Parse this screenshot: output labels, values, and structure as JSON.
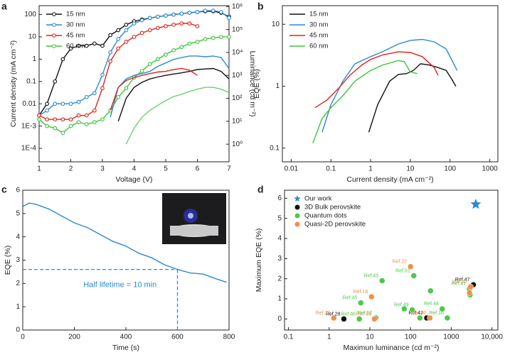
{
  "chart_data": [
    {
      "type": "line",
      "panel": "a",
      "xlabel": "Voltage (V)",
      "ylabel": "Current density (mA cm⁻²)",
      "y2label": "Luminance (cd m⁻²)",
      "log_y": true,
      "log_y2": true,
      "legend": "upper left",
      "xlim": [
        1,
        7
      ],
      "xticks": [
        1,
        2,
        3,
        4,
        5,
        6,
        7
      ],
      "ylim": [
        2.5e-05,
        250
      ],
      "yticks": [
        {
          "value": 0.0001,
          "label": "1E-4"
        },
        {
          "value": 0.001,
          "label": "1E-3"
        },
        0.01,
        0.1,
        1,
        10,
        100
      ],
      "y2lim": [
        0.17,
        1100000
      ],
      "y2ticks": [
        {
          "value": 1,
          "label": "10⁰"
        },
        {
          "value": 10,
          "label": "10¹"
        },
        {
          "value": 100,
          "label": "10²"
        },
        {
          "value": 1000,
          "label": "10³"
        },
        {
          "value": 10000,
          "label": "10⁴"
        },
        {
          "value": 100000,
          "label": "10⁵"
        },
        {
          "value": 1000000,
          "label": "10⁶"
        }
      ],
      "x": [
        1,
        1.25,
        1.5,
        1.75,
        2,
        2.25,
        2.5,
        2.75,
        3,
        3.25,
        3.5,
        3.75,
        4,
        4.25,
        4.5,
        4.75,
        5,
        5.25,
        5.5,
        5.75,
        6,
        6.25,
        6.5,
        6.75,
        7
      ],
      "series": [
        {
          "name": "15 nm",
          "color": "#111111",
          "markers": true,
          "values": [
            0.003,
            0.01,
            0.1,
            1,
            3,
            4,
            4,
            5,
            4,
            12,
            20,
            35,
            50,
            60,
            70,
            80,
            90,
            100,
            110,
            120,
            130,
            140,
            140,
            120,
            80
          ]
        },
        {
          "name": "30 nm",
          "color": "#2a8ad4",
          "markers": true,
          "values": [
            0.003,
            0.005,
            0.01,
            0.01,
            0.01,
            0.012,
            0.02,
            0.03,
            0.2,
            2,
            8,
            20,
            40,
            55,
            70,
            80,
            90,
            100,
            110,
            120,
            130,
            150,
            150,
            130,
            70
          ]
        },
        {
          "name": "45 nm",
          "color": "#e3221c",
          "markers": true,
          "values": [
            0.003,
            0.002,
            0.002,
            0.002,
            0.002,
            0.003,
            0.003,
            0.005,
            0.05,
            0.8,
            3,
            6,
            10,
            15,
            20,
            25,
            30,
            35,
            40,
            40,
            30,
            null,
            null,
            null,
            null
          ]
        },
        {
          "name": "60 nm",
          "color": "#3cc43c",
          "markers": true,
          "values": [
            0.002,
            0.001,
            0.0008,
            0.0005,
            0.001,
            0.0015,
            0.0012,
            0.0015,
            0.002,
            0.005,
            0.02,
            0.05,
            0.15,
            0.3,
            0.6,
            1,
            1.6,
            2.5,
            3.5,
            5,
            6,
            8,
            9,
            10,
            10
          ]
        },
        {
          "color": "#111111",
          "axis": "y2",
          "values": [
            null,
            null,
            null,
            null,
            null,
            null,
            null,
            null,
            null,
            null,
            10,
            100,
            300,
            500,
            700,
            850,
            1000,
            1150,
            1300,
            1500,
            1800,
            1900,
            2000,
            1500,
            700
          ]
        },
        {
          "color": "#2a8ad4",
          "axis": "y2",
          "values": [
            null,
            null,
            null,
            null,
            null,
            null,
            null,
            null,
            null,
            15,
            300,
            700,
            1000,
            1200,
            1500,
            2500,
            3500,
            5000,
            6000,
            7000,
            7000,
            6500,
            7000,
            6000,
            2000
          ]
        },
        {
          "color": "#e3221c",
          "axis": "y2",
          "values": [
            null,
            null,
            null,
            null,
            null,
            null,
            null,
            null,
            null,
            30,
            300,
            600,
            800,
            1000,
            1200,
            1400,
            1500,
            1800,
            2000,
            1700,
            1000,
            null,
            null,
            null,
            null
          ]
        },
        {
          "color": "#66d466",
          "axis": "y2",
          "values": [
            null,
            null,
            null,
            null,
            null,
            null,
            null,
            null,
            null,
            null,
            null,
            1,
            5,
            15,
            30,
            50,
            80,
            120,
            150,
            200,
            250,
            300,
            300,
            250,
            180
          ]
        }
      ]
    },
    {
      "type": "line",
      "panel": "b",
      "xlabel": "Current density (mA cm⁻²)",
      "ylabel": "EQE (%)",
      "log_x": true,
      "log_y": true,
      "legend": "upper left",
      "xlim": [
        0.006,
        1600
      ],
      "xticks": [
        0.01,
        0.1,
        1,
        10,
        100,
        1000
      ],
      "ylim": [
        0.06,
        20
      ],
      "yticks": [
        0.1,
        1,
        10
      ],
      "series": [
        {
          "name": "15 nm",
          "color": "#111111",
          "x": [
            0.9,
            1.5,
            3,
            5,
            8,
            12,
            18,
            30,
            50,
            80,
            110,
            140
          ],
          "values": [
            0.18,
            0.5,
            1.2,
            1.55,
            1.6,
            1.8,
            2.3,
            2.2,
            2,
            1.8,
            1.3,
            1
          ]
        },
        {
          "name": "30 nm",
          "color": "#2a8ad4",
          "x": [
            0.06,
            0.1,
            0.2,
            0.4,
            1,
            2,
            5,
            10,
            20,
            40,
            80,
            150
          ],
          "values": [
            0.18,
            0.5,
            1.2,
            2.3,
            3,
            3.6,
            4.8,
            5.5,
            5.7,
            5.2,
            4,
            1.8
          ]
        },
        {
          "name": "45 nm",
          "color": "#e3221c",
          "x": [
            0.04,
            0.08,
            0.15,
            0.3,
            0.6,
            1,
            2,
            5,
            10,
            20,
            40,
            50
          ],
          "values": [
            0.45,
            0.6,
            0.9,
            1.5,
            2.2,
            2.7,
            3.2,
            3.6,
            3.5,
            3,
            2,
            1.5
          ]
        },
        {
          "name": "60 nm",
          "color": "#3cc43c",
          "x": [
            0.035,
            0.06,
            0.1,
            0.2,
            0.4,
            1,
            2,
            5,
            7,
            10,
            15
          ],
          "values": [
            0.12,
            0.3,
            0.45,
            0.7,
            1.2,
            1.8,
            2.2,
            2.6,
            2.5,
            1.7,
            1.6
          ]
        }
      ]
    },
    {
      "type": "line",
      "panel": "c",
      "xlabel": "Time (s)",
      "ylabel": "EQE (%)",
      "xlim": [
        0,
        800
      ],
      "xticks": [
        0,
        200,
        400,
        600,
        800
      ],
      "ylim": [
        0,
        6
      ],
      "yticks": [
        0,
        1,
        2,
        3,
        4,
        5,
        6
      ],
      "annotation": "Half lifetime = 10 min",
      "reference": {
        "x": 600,
        "y": 2.6
      },
      "series": [
        {
          "color": "#2a8ad4",
          "x": [
            0,
            25,
            50,
            100,
            150,
            200,
            250,
            300,
            350,
            400,
            450,
            500,
            550,
            600,
            650,
            700,
            750,
            790
          ],
          "values": [
            5.3,
            5.45,
            5.4,
            5.2,
            4.9,
            4.6,
            4.4,
            4.1,
            3.8,
            3.6,
            3.3,
            3.1,
            2.8,
            2.6,
            2.45,
            2.4,
            2.2,
            2.05
          ]
        }
      ]
    },
    {
      "type": "scatter",
      "panel": "d",
      "xlabel": "Maximun luminance (cd m⁻²)",
      "ylabel": "Maximum EQE (%)",
      "log_x": true,
      "legend": "upper left",
      "xlim": [
        0.08,
        14000
      ],
      "xticks": [
        0.1,
        1,
        10,
        100,
        1000,
        {
          "value": 10000,
          "label": "10,000"
        }
      ],
      "ylim": [
        -0.55,
        6.4
      ],
      "yticks": [
        0,
        1,
        2,
        3,
        4,
        5,
        6
      ],
      "series": [
        {
          "name": "Our work",
          "color": "#2a8ad4",
          "marker": "star",
          "x": [
            4000
          ],
          "values": [
            5.7
          ]
        },
        {
          "name": "3D Bulk perovskite",
          "color": "#111111",
          "marker": "circle",
          "x": [
            2.3,
            250,
            3500
          ],
          "values": [
            0,
            0.05,
            1.7
          ],
          "labels": [
            "Ref.28",
            "Ref.42",
            "Ref.47"
          ]
        },
        {
          "name": "Quantum dots",
          "color": "#4cc94c",
          "marker": "circle",
          "x": [
            20,
            120,
            6,
            5.5,
            14,
            110,
            70,
            600,
            170,
            800,
            310,
            2800,
            2900
          ],
          "values": [
            1.9,
            2.15,
            0.8,
            0,
            0.05,
            0.45,
            0.5,
            0.5,
            0.05,
            0.05,
            1.4,
            1.5,
            1.2
          ],
          "labels": [
            "Ref.43",
            "Ref.51",
            "Ref.45",
            "Ref.46",
            "Ref.52",
            "Ref.49",
            null,
            "Ref.48",
            null,
            "Ref.16",
            null,
            "Ref.41",
            null
          ]
        },
        {
          "name": "Quasi-2D perovskite",
          "color": "#f0904a",
          "marker": "circle",
          "x": [
            100,
            3000,
            11,
            1.3,
            13,
            300,
            2800
          ],
          "values": [
            2.6,
            1.6,
            1.1,
            0.05,
            0,
            0.05,
            1.3
          ],
          "labels": [
            "Ref.22",
            "Ref.20",
            "Ref.18",
            "Ref.19",
            "Ref.44",
            "Ref.50",
            null
          ]
        }
      ]
    }
  ]
}
